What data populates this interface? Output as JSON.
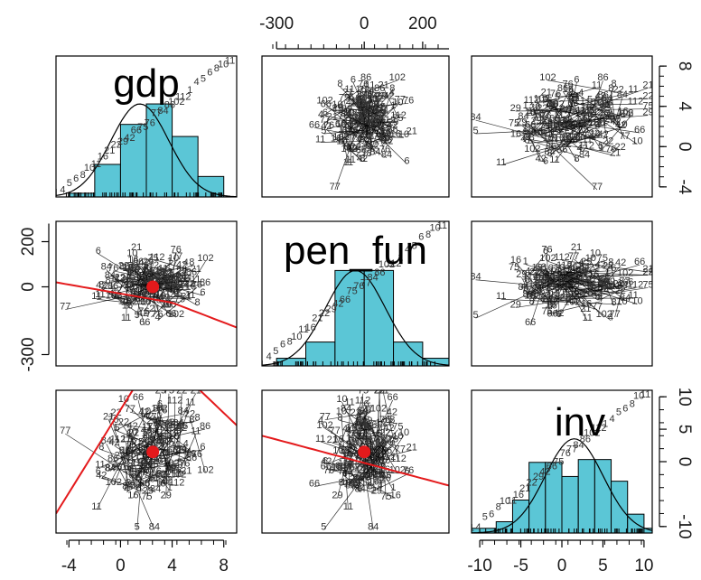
{
  "chart_data": {
    "type": "scatter",
    "layout": "scatterplot-matrix",
    "variables": [
      "gdp",
      "pen_fun",
      "inv"
    ],
    "colors": {
      "histogram_fill": "#5bc6d6",
      "smoother": "#e41a1c",
      "centroid": "#e41a1c",
      "points": "#333333",
      "panel_border": "#000000"
    },
    "axes": {
      "gdp": {
        "range": [
          -5,
          9
        ],
        "ticks": [
          "-4",
          "0",
          "4",
          "8"
        ],
        "tick_values": [
          -4,
          0,
          4,
          8
        ]
      },
      "pen_fun": {
        "range": [
          -350,
          290
        ],
        "ticks": [
          "-300",
          "0",
          "200"
        ],
        "tick_values": [
          -300,
          0,
          200
        ],
        "left_ticks": [
          "-300",
          "0",
          "200"
        ]
      },
      "inv": {
        "range": [
          -11,
          11
        ],
        "ticks": [
          "-10",
          "-5",
          "0",
          "5",
          "10"
        ],
        "tick_values": [
          -10,
          -5,
          0,
          5,
          10
        ],
        "right_ticks_row1": [
          "-4",
          "0",
          "4",
          "8"
        ],
        "right_ticks_row3": [
          "-10",
          "0",
          "5",
          "10"
        ]
      }
    },
    "histograms": {
      "gdp": {
        "bins": [
          -4,
          -2,
          0,
          2,
          4,
          6,
          8
        ],
        "heights": [
          0.04,
          0.35,
          0.78,
          1.0,
          0.65,
          0.22
        ]
      },
      "pen_fun": {
        "bins": [
          -300,
          -200,
          -100,
          0,
          100,
          200,
          300
        ],
        "heights": [
          0.08,
          0.25,
          1.0,
          1.0,
          0.25,
          0.08
        ]
      },
      "inv": {
        "bins": [
          -12,
          -10,
          -8,
          -6,
          -4,
          -2,
          0,
          2,
          4,
          6,
          8,
          10,
          12
        ],
        "heights": [
          0.05,
          0.05,
          0.12,
          0.35,
          0.75,
          0.75,
          0.6,
          0.78,
          0.78,
          0.55,
          0.2,
          0.05
        ]
      }
    },
    "centroids": {
      "gdp_pen_fun": [
        2.5,
        0
      ],
      "gdp_inv": [
        2.5,
        1.5
      ],
      "pen_fun_inv": [
        0,
        1.5
      ]
    },
    "point_labels": [
      "1",
      "4",
      "5",
      "6",
      "8",
      "10",
      "11",
      "16",
      "21",
      "22",
      "29",
      "42",
      "66",
      "75",
      "76",
      "77",
      "84",
      "86",
      "102",
      "112"
    ]
  }
}
